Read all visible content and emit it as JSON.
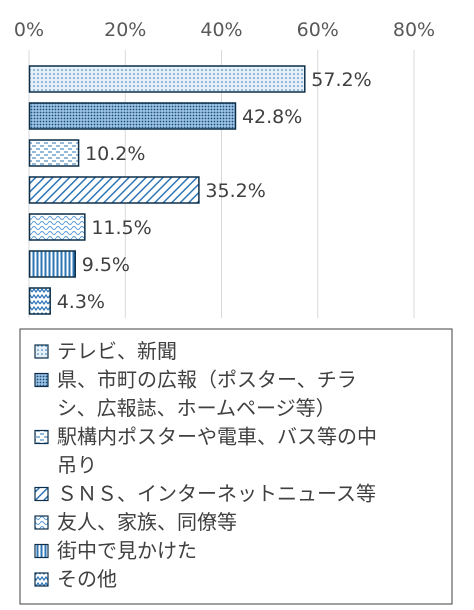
{
  "chart_data": {
    "type": "bar",
    "orientation": "horizontal",
    "xlim": [
      0,
      80
    ],
    "x_ticks": [
      "0%",
      "20%",
      "40%",
      "60%",
      "80%"
    ],
    "grid": true,
    "legend_position": "bottom",
    "categories": [
      "テレビ、新聞",
      "県、市町の広報（ポスター、チラシ、広報誌、ホームページ等）",
      "駅構内ポスターや電車、バス等の中吊り",
      "ＳＮＳ、インターネットニュース等",
      "友人、家族、同僚等",
      "街中で見かけた",
      "その他"
    ],
    "values": [
      57.2,
      42.8,
      10.2,
      35.2,
      11.5,
      9.5,
      4.3
    ],
    "value_labels": [
      "57.2%",
      "42.8%",
      "10.2%",
      "35.2%",
      "11.5%",
      "9.5%",
      "4.3%"
    ],
    "legend_lines": [
      [
        "テレビ、新聞"
      ],
      [
        "県、市町の広報（ポスター、チラ",
        "シ、広報誌、ホームページ等）"
      ],
      [
        "駅構内ポスターや電車、バス等の中",
        "吊り"
      ],
      [
        "ＳＮＳ、インターネットニュース等"
      ],
      [
        "友人、家族、同僚等"
      ],
      [
        "街中で見かけた"
      ],
      [
        "その他"
      ]
    ],
    "patterns": [
      "dots-light",
      "dots-dense",
      "dashes",
      "diagonal",
      "waves",
      "vertical",
      "zigzag"
    ],
    "colors": {
      "border": "#0d2f49",
      "fill_light": "#dbeaf6",
      "fill_mid": "#5b9bd5",
      "pattern": "#2e75b6",
      "grid": "#d9d9d9"
    }
  }
}
